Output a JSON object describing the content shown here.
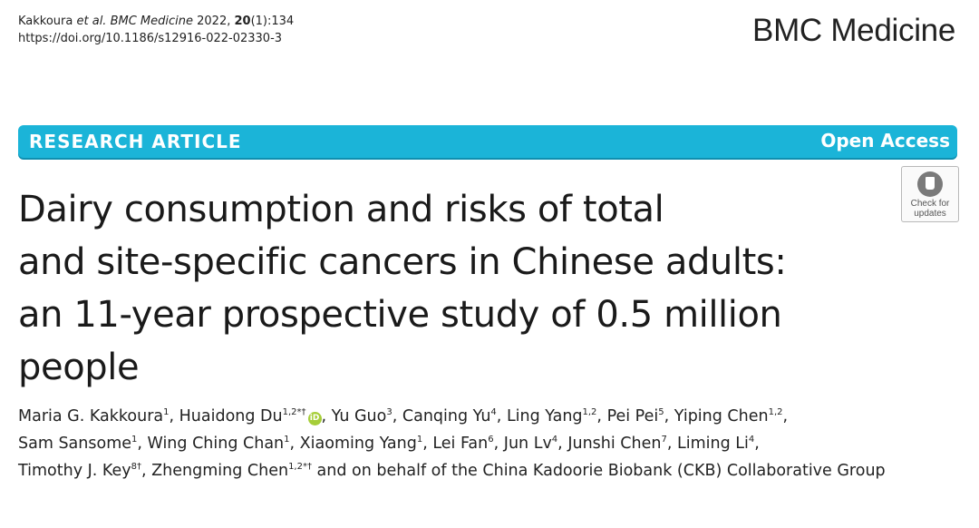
{
  "citation": {
    "authors_text": "Kakkoura ",
    "et_al": "et al. BMC Medicine",
    "year": " 2022, ",
    "volume": "20",
    "issue_pages": "(1):134",
    "doi": "https://doi.org/10.1186/s12916-022-02330-3"
  },
  "journal_name": "BMC Medicine",
  "banner": {
    "article_type": "RESEARCH ARTICLE",
    "access": "Open Access",
    "banner_color": "#1bb4d8"
  },
  "check_updates": {
    "line1": "Check for",
    "line2": "updates",
    "icon": "bookmark-icon"
  },
  "title": {
    "line1": "Dairy consumption and risks of total",
    "line2": "and site-specific cancers in Chinese adults:",
    "line3": "an 11-year prospective study of 0.5 million",
    "line4": "people"
  },
  "authors": [
    {
      "name": "Maria G. Kakkoura",
      "sup": "1",
      "sep": ", "
    },
    {
      "name": "Huaidong Du",
      "sup": "1,2*†",
      "orcid": true,
      "sep": ", "
    },
    {
      "name": "Yu Guo",
      "sup": "3",
      "sep": ", "
    },
    {
      "name": "Canqing Yu",
      "sup": "4",
      "sep": ", "
    },
    {
      "name": "Ling Yang",
      "sup": "1,2",
      "sep": ", "
    },
    {
      "name": "Pei Pei",
      "sup": "5",
      "sep": ", "
    },
    {
      "name": "Yiping Chen",
      "sup": "1,2",
      "sep": ","
    },
    {
      "name": "Sam Sansome",
      "sup": "1",
      "sep": ", "
    },
    {
      "name": "Wing Ching Chan",
      "sup": "1",
      "sep": ", "
    },
    {
      "name": "Xiaoming Yang",
      "sup": "1",
      "sep": ", "
    },
    {
      "name": "Lei Fan",
      "sup": "6",
      "sep": ", "
    },
    {
      "name": "Jun Lv",
      "sup": "4",
      "sep": ", "
    },
    {
      "name": "Junshi Chen",
      "sup": "7",
      "sep": ", "
    },
    {
      "name": "Liming Li",
      "sup": "4",
      "sep": ","
    },
    {
      "name": "Timothy J. Key",
      "sup": "8†",
      "sep": ", "
    },
    {
      "name": "Zhengming Chen",
      "sup": "1,2*†",
      "sep": " "
    }
  ],
  "authors_tail": "and on behalf of the China Kadoorie Biobank (CKB) Collaborative Group",
  "orcid_label": "iD"
}
